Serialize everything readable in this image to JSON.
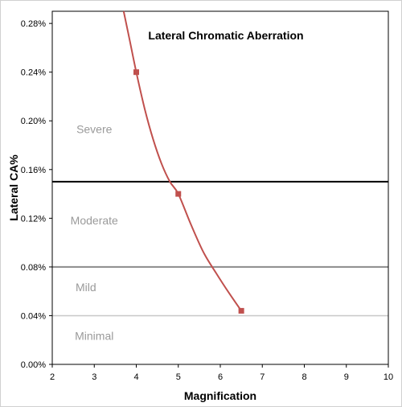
{
  "chart_data": {
    "type": "line",
    "title": "Lateral Chromatic Aberration",
    "xlabel": "Magnification",
    "ylabel": "Lateral CA%",
    "xlim": [
      2,
      10
    ],
    "ylim": [
      0,
      0.29
    ],
    "x_ticks": [
      "2",
      "3",
      "4",
      "5",
      "6",
      "7",
      "8",
      "9",
      "10"
    ],
    "y_ticks": [
      "0.00%",
      "0.04%",
      "0.08%",
      "0.12%",
      "0.16%",
      "0.20%",
      "0.24%",
      "0.28%"
    ],
    "y_tick_values": [
      0,
      0.04,
      0.08,
      0.12,
      0.16,
      0.2,
      0.24,
      0.28
    ],
    "x_tick_values": [
      2,
      3,
      4,
      5,
      6,
      7,
      8,
      9,
      10
    ],
    "grid": false,
    "series": [
      {
        "color": "#c0504d",
        "marker": "square",
        "markers": [
          {
            "x": 4,
            "y": 0.24
          },
          {
            "x": 5,
            "y": 0.14
          },
          {
            "x": 6.5,
            "y": 0.044
          }
        ],
        "curve": [
          {
            "x": 3.7,
            "y": 0.29
          },
          {
            "x": 3.85,
            "y": 0.265
          },
          {
            "x": 4,
            "y": 0.24
          },
          {
            "x": 4.2,
            "y": 0.21
          },
          {
            "x": 4.4,
            "y": 0.185
          },
          {
            "x": 4.6,
            "y": 0.165
          },
          {
            "x": 4.8,
            "y": 0.15
          },
          {
            "x": 5,
            "y": 0.14
          },
          {
            "x": 5.3,
            "y": 0.115
          },
          {
            "x": 5.6,
            "y": 0.092
          },
          {
            "x": 5.9,
            "y": 0.075
          },
          {
            "x": 6.2,
            "y": 0.059
          },
          {
            "x": 6.5,
            "y": 0.044
          }
        ]
      }
    ],
    "thresholds": [
      {
        "y": 0.15,
        "color": "#000000",
        "width": 2
      },
      {
        "y": 0.08,
        "color": "#8c8c8c",
        "width": 2
      },
      {
        "y": 0.04,
        "color": "#c8c8c8",
        "width": 1.5
      }
    ],
    "zones": [
      {
        "label": "Severe",
        "x": 3,
        "y": 0.19
      },
      {
        "label": "Moderate",
        "x": 3,
        "y": 0.115
      },
      {
        "label": "Mild",
        "x": 2.8,
        "y": 0.06
      },
      {
        "label": "Minimal",
        "x": 3,
        "y": 0.02
      }
    ]
  }
}
